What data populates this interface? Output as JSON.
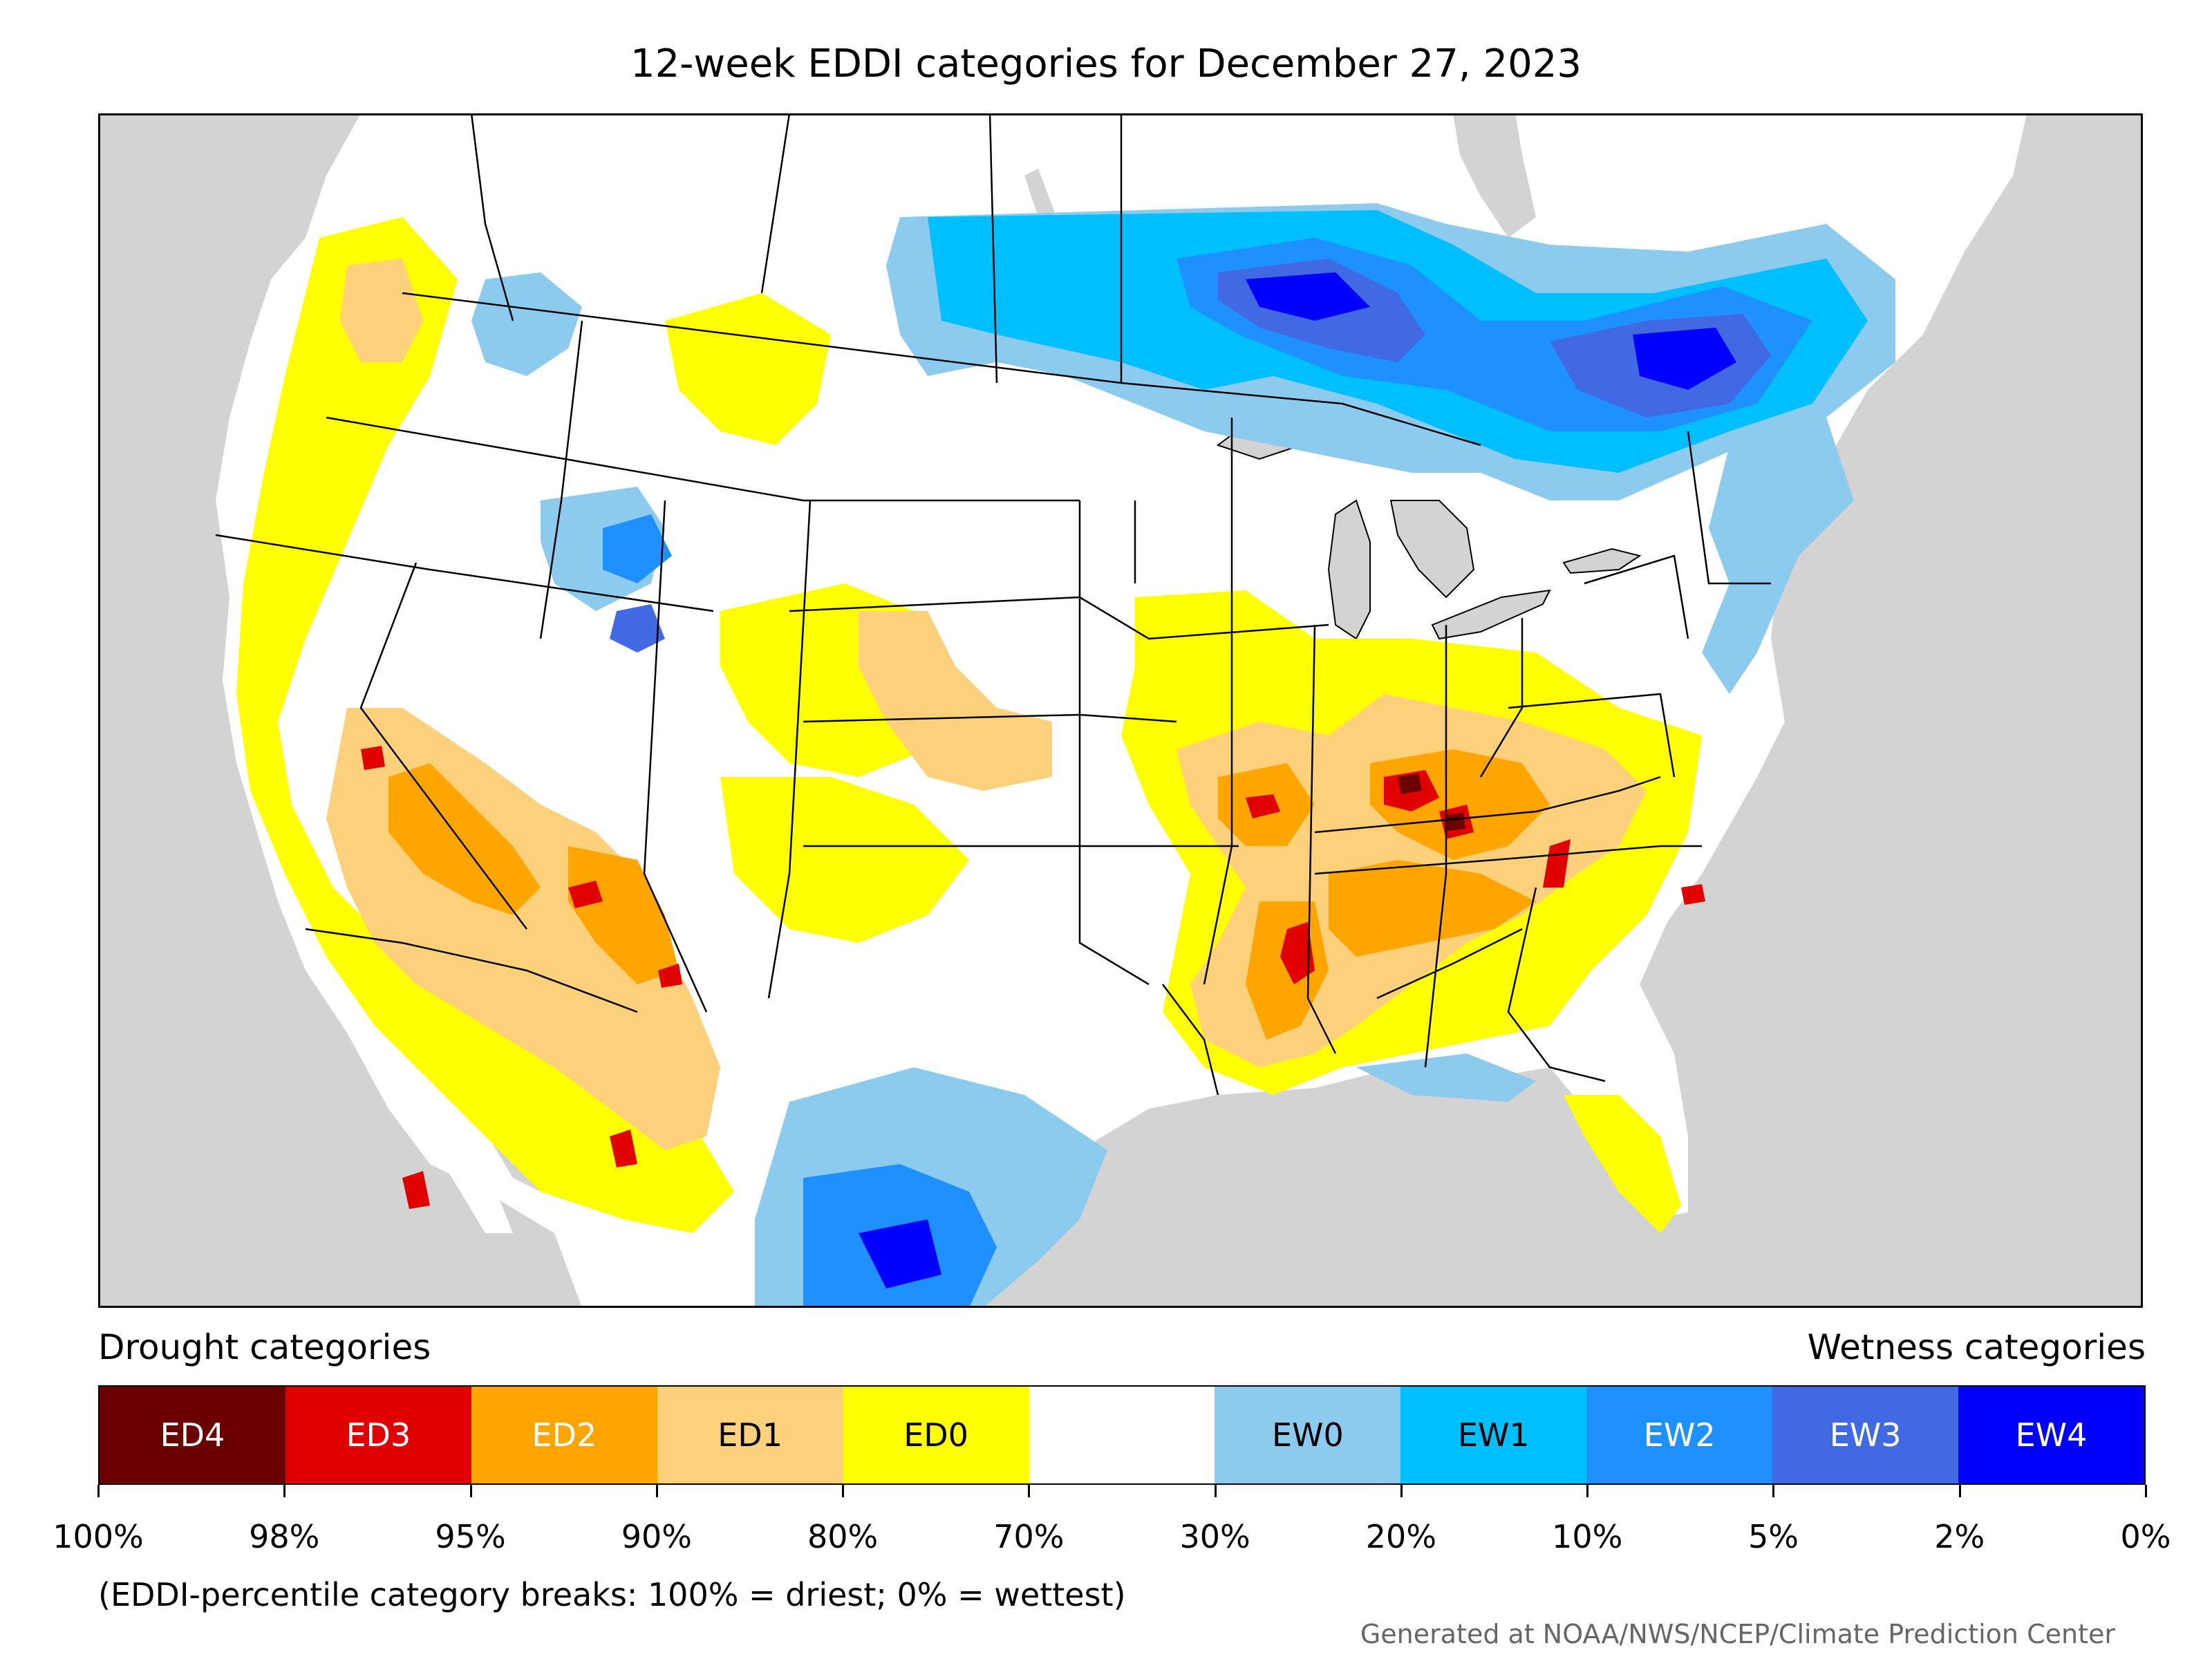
{
  "title": "12-week EDDI categories for December 27, 2023",
  "legend": {
    "drought_heading": "Drought categories",
    "wetness_heading": "Wetness categories",
    "categories": [
      {
        "label": "ED4",
        "color": "#6b0000",
        "text_color": "#ffffff"
      },
      {
        "label": "ED3",
        "color": "#e00000",
        "text_color": "#ffffff"
      },
      {
        "label": "ED2",
        "color": "#ffa500",
        "text_color": "#ffffff"
      },
      {
        "label": "ED1",
        "color": "#fdd07c",
        "text_color": "#000000"
      },
      {
        "label": "ED0",
        "color": "#ffff00",
        "text_color": "#000000"
      },
      {
        "label": "",
        "color": "#ffffff",
        "text_color": "#000000"
      },
      {
        "label": "EW0",
        "color": "#8ccbee",
        "text_color": "#000000"
      },
      {
        "label": "EW1",
        "color": "#00bfff",
        "text_color": "#000000"
      },
      {
        "label": "EW2",
        "color": "#1e90ff",
        "text_color": "#ffffff"
      },
      {
        "label": "EW3",
        "color": "#4169e1",
        "text_color": "#ffffff"
      },
      {
        "label": "EW4",
        "color": "#0000ff",
        "text_color": "#ffffff"
      }
    ],
    "tick_labels": [
      "100%",
      "98%",
      "95%",
      "90%",
      "80%",
      "70%",
      "30%",
      "20%",
      "10%",
      "5%",
      "2%",
      "0%"
    ]
  },
  "note": "(EDDI-percentile category breaks: 100% = driest; 0% = wettest)",
  "credit": "Generated at NOAA/NWS/NCEP/Climate Prediction Center",
  "map": {
    "ocean_color": "#d3d3d3",
    "land_color": "#ffffff"
  }
}
